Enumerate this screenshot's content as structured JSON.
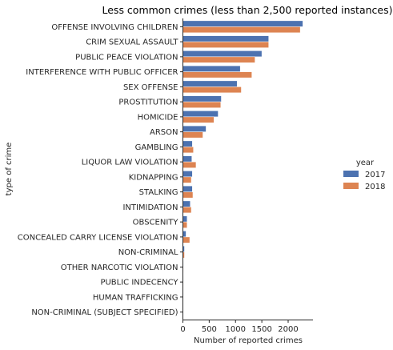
{
  "chart_data": {
    "type": "bar",
    "orientation": "horizontal",
    "title": "Less common crimes (less than 2,500 reported instances)",
    "xlabel": "Number of reported crimes",
    "ylabel": "type of crime",
    "xlim": [
      0,
      2400
    ],
    "xticks": [
      0,
      500,
      1000,
      1500,
      2000
    ],
    "grid": false,
    "legend": {
      "title": "year",
      "placement": "right"
    },
    "categories": [
      "OFFENSE INVOLVING CHILDREN",
      "CRIM SEXUAL ASSAULT",
      "PUBLIC PEACE VIOLATION",
      "INTERFERENCE WITH PUBLIC OFFICER",
      "SEX OFFENSE",
      "PROSTITUTION",
      "HOMICIDE",
      "ARSON",
      "GAMBLING",
      "LIQUOR LAW VIOLATION",
      "KIDNAPPING",
      "STALKING",
      "INTIMIDATION",
      "OBSCENITY",
      "CONCEALED CARRY LICENSE VIOLATION",
      "NON-CRIMINAL",
      "OTHER NARCOTIC VIOLATION",
      "PUBLIC INDECENCY",
      "HUMAN TRAFFICKING",
      "NON-CRIMINAL (SUBJECT SPECIFIED)"
    ],
    "series": [
      {
        "name": "2017",
        "color": "#4c72b0",
        "values": [
          2280,
          1630,
          1500,
          1090,
          1030,
          730,
          670,
          440,
          180,
          170,
          180,
          180,
          140,
          80,
          60,
          30,
          10,
          8,
          6,
          3
        ]
      },
      {
        "name": "2018",
        "color": "#dd8452",
        "values": [
          2230,
          1630,
          1370,
          1310,
          1110,
          720,
          590,
          380,
          200,
          250,
          160,
          190,
          160,
          80,
          130,
          30,
          12,
          8,
          5,
          3
        ]
      }
    ]
  }
}
